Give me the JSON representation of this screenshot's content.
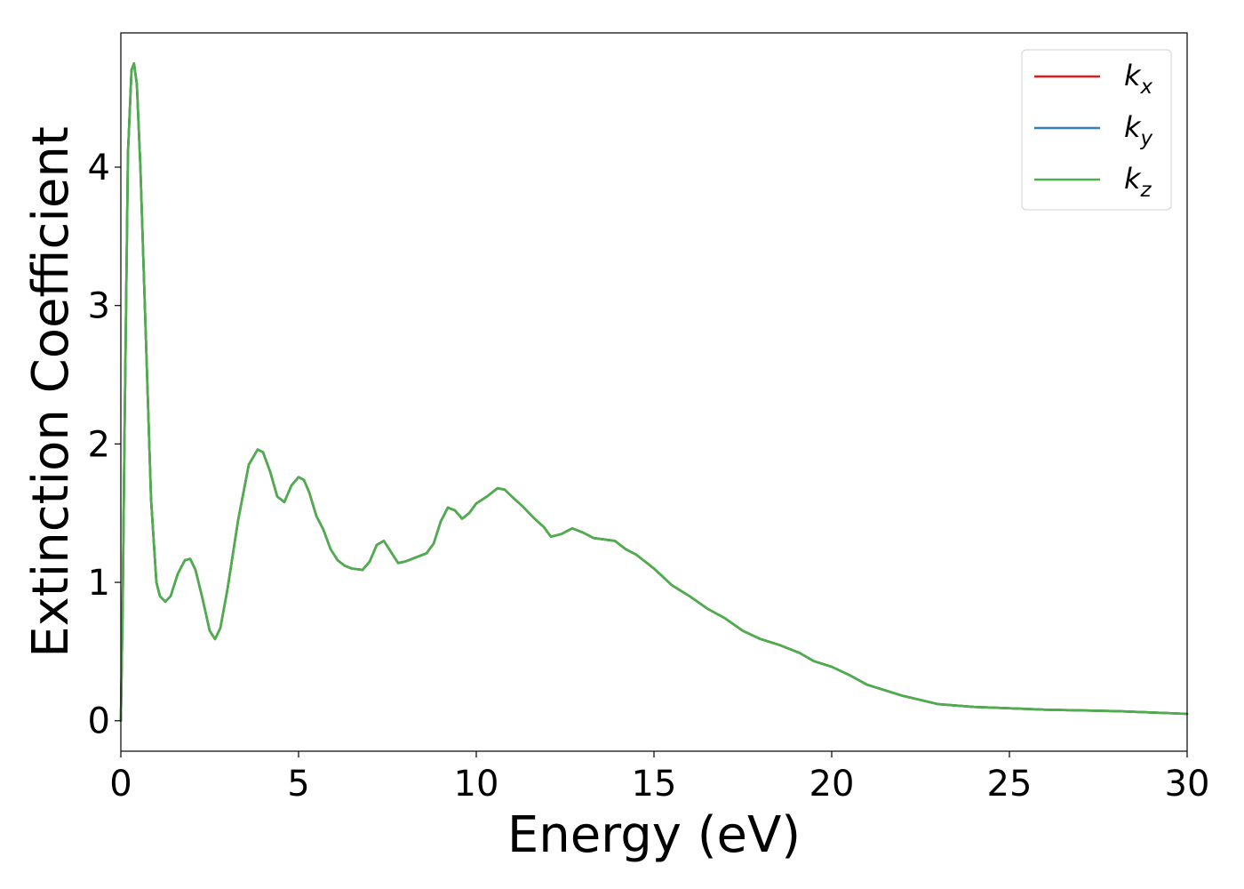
{
  "chart_data": {
    "type": "line",
    "title": "",
    "xlabel": "Energy (eV)",
    "ylabel": "Extinction Coefficient",
    "xlim": [
      0,
      30
    ],
    "ylim": [
      -0.22,
      4.97
    ],
    "xticks": [
      0,
      5,
      10,
      15,
      20,
      25,
      30
    ],
    "yticks": [
      0,
      1,
      2,
      3,
      4
    ],
    "grid": false,
    "legend_position": "top-right",
    "x": [
      0,
      0.05,
      0.1,
      0.2,
      0.3,
      0.37,
      0.45,
      0.55,
      0.7,
      0.85,
      1.0,
      1.1,
      1.25,
      1.4,
      1.6,
      1.8,
      1.95,
      2.1,
      2.3,
      2.5,
      2.65,
      2.8,
      3.0,
      3.3,
      3.6,
      3.85,
      4.0,
      4.2,
      4.4,
      4.6,
      4.8,
      5.0,
      5.15,
      5.3,
      5.5,
      5.7,
      5.9,
      6.1,
      6.3,
      6.5,
      6.8,
      7.0,
      7.2,
      7.4,
      7.6,
      7.8,
      8.0,
      8.3,
      8.6,
      8.8,
      9.0,
      9.2,
      9.4,
      9.6,
      9.8,
      10.0,
      10.3,
      10.6,
      10.8,
      11.0,
      11.3,
      11.6,
      11.9,
      12.1,
      12.4,
      12.7,
      13.0,
      13.3,
      13.6,
      13.9,
      14.2,
      14.5,
      15.0,
      15.5,
      16.0,
      16.5,
      17.0,
      17.5,
      18.0,
      18.5,
      18.8,
      19.1,
      19.5,
      20.0,
      20.5,
      21.0,
      21.5,
      22.0,
      23.0,
      24.0,
      25.0,
      26.0,
      27.0,
      28.0,
      29.0,
      30.0
    ],
    "series": [
      {
        "name": "k_x",
        "color": "#e41a1c",
        "values": [
          0.0,
          0.8,
          2.0,
          4.1,
          4.7,
          4.75,
          4.6,
          4.0,
          2.8,
          1.6,
          1.0,
          0.9,
          0.86,
          0.9,
          1.06,
          1.16,
          1.17,
          1.09,
          0.88,
          0.65,
          0.59,
          0.67,
          0.95,
          1.45,
          1.85,
          1.96,
          1.94,
          1.8,
          1.62,
          1.58,
          1.7,
          1.76,
          1.74,
          1.65,
          1.48,
          1.38,
          1.24,
          1.16,
          1.12,
          1.1,
          1.09,
          1.15,
          1.27,
          1.3,
          1.22,
          1.14,
          1.15,
          1.18,
          1.21,
          1.28,
          1.44,
          1.54,
          1.52,
          1.46,
          1.5,
          1.57,
          1.62,
          1.68,
          1.67,
          1.62,
          1.55,
          1.47,
          1.4,
          1.33,
          1.35,
          1.39,
          1.36,
          1.32,
          1.31,
          1.3,
          1.24,
          1.2,
          1.1,
          0.98,
          0.9,
          0.81,
          0.74,
          0.65,
          0.59,
          0.55,
          0.52,
          0.49,
          0.43,
          0.39,
          0.33,
          0.26,
          0.22,
          0.18,
          0.12,
          0.1,
          0.09,
          0.08,
          0.075,
          0.07,
          0.06,
          0.05
        ]
      },
      {
        "name": "k_y",
        "color": "#377eb8",
        "values": [
          0.0,
          0.8,
          2.0,
          4.1,
          4.7,
          4.75,
          4.6,
          4.0,
          2.8,
          1.6,
          1.0,
          0.9,
          0.86,
          0.9,
          1.06,
          1.16,
          1.17,
          1.09,
          0.88,
          0.65,
          0.59,
          0.67,
          0.95,
          1.45,
          1.85,
          1.96,
          1.94,
          1.8,
          1.62,
          1.58,
          1.7,
          1.76,
          1.74,
          1.65,
          1.48,
          1.38,
          1.24,
          1.16,
          1.12,
          1.1,
          1.09,
          1.15,
          1.27,
          1.3,
          1.22,
          1.14,
          1.15,
          1.18,
          1.21,
          1.28,
          1.44,
          1.54,
          1.52,
          1.46,
          1.5,
          1.57,
          1.62,
          1.68,
          1.67,
          1.62,
          1.55,
          1.47,
          1.4,
          1.33,
          1.35,
          1.39,
          1.36,
          1.32,
          1.31,
          1.3,
          1.24,
          1.2,
          1.1,
          0.98,
          0.9,
          0.81,
          0.74,
          0.65,
          0.59,
          0.55,
          0.52,
          0.49,
          0.43,
          0.39,
          0.33,
          0.26,
          0.22,
          0.18,
          0.12,
          0.1,
          0.09,
          0.08,
          0.075,
          0.07,
          0.06,
          0.05
        ]
      },
      {
        "name": "k_z",
        "color": "#4daf4a",
        "values": [
          0.0,
          0.8,
          2.0,
          4.1,
          4.7,
          4.75,
          4.6,
          4.0,
          2.8,
          1.6,
          1.0,
          0.9,
          0.86,
          0.9,
          1.06,
          1.16,
          1.17,
          1.09,
          0.88,
          0.65,
          0.59,
          0.67,
          0.95,
          1.45,
          1.85,
          1.96,
          1.94,
          1.8,
          1.62,
          1.58,
          1.7,
          1.76,
          1.74,
          1.65,
          1.48,
          1.38,
          1.24,
          1.16,
          1.12,
          1.1,
          1.09,
          1.15,
          1.27,
          1.3,
          1.22,
          1.14,
          1.15,
          1.18,
          1.21,
          1.28,
          1.44,
          1.54,
          1.52,
          1.46,
          1.5,
          1.57,
          1.62,
          1.68,
          1.67,
          1.62,
          1.55,
          1.47,
          1.4,
          1.33,
          1.35,
          1.39,
          1.36,
          1.32,
          1.31,
          1.3,
          1.24,
          1.2,
          1.1,
          0.98,
          0.9,
          0.81,
          0.74,
          0.65,
          0.59,
          0.55,
          0.52,
          0.49,
          0.43,
          0.39,
          0.33,
          0.26,
          0.22,
          0.18,
          0.12,
          0.1,
          0.09,
          0.08,
          0.075,
          0.07,
          0.06,
          0.05
        ]
      }
    ],
    "legend": [
      {
        "base": "k",
        "sub": "x",
        "color": "#e41a1c"
      },
      {
        "base": "k",
        "sub": "y",
        "color": "#377eb8"
      },
      {
        "base": "k",
        "sub": "z",
        "color": "#4daf4a"
      }
    ]
  }
}
